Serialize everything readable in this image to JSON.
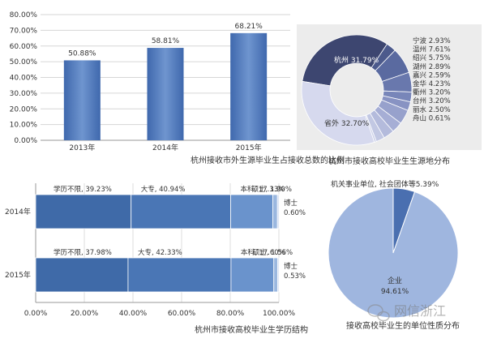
{
  "chart_data": [
    {
      "type": "bar",
      "title": "杭州接收市外生源毕业生占接收总数的比例",
      "categories": [
        "2013年",
        "2014年",
        "2015年"
      ],
      "values": [
        50.88,
        58.81,
        68.21
      ],
      "value_labels": [
        "50.88%",
        "58.81%",
        "68.21%"
      ],
      "yticks": [
        "0.00%",
        "10.00%",
        "20.00%",
        "30.00%",
        "40.00%",
        "50.00%",
        "60.00%",
        "70.00%",
        "80.00%"
      ],
      "ylim": [
        0,
        80
      ],
      "grid": true,
      "colors": {
        "bar": "#3f68ad",
        "bar_light": "#6f95cf"
      }
    },
    {
      "type": "pie",
      "title": "杭州市接收高校毕业生生源地分布",
      "slices": [
        {
          "name": "杭州",
          "value": 31.79,
          "label": "杭州 31.79%",
          "color": "#3d4670"
        },
        {
          "name": "宁波",
          "value": 2.93,
          "label": "2.93%",
          "color": "#4c5a8c"
        },
        {
          "name": "温州",
          "value": 7.61,
          "label": "7.61%",
          "color": "#5a6aa0"
        },
        {
          "name": "绍兴",
          "value": 5.75,
          "label": "5.75%",
          "color": "#6978ad"
        },
        {
          "name": "湖州",
          "value": 2.89,
          "label": "2.89%",
          "color": "#7886b9"
        },
        {
          "name": "嘉兴",
          "value": 2.59,
          "label": "2.59%",
          "color": "#8893c3"
        },
        {
          "name": "金华",
          "value": 4.23,
          "label": "4.23%",
          "color": "#97a1cc"
        },
        {
          "name": "衢州",
          "value": 3.2,
          "label": "3.20%",
          "color": "#a6aed5"
        },
        {
          "name": "台州",
          "value": 3.2,
          "label": "3.20%",
          "color": "#b4bbdc"
        },
        {
          "name": "丽水",
          "value": 2.5,
          "label": "2.50%",
          "color": "#c2c8e3"
        },
        {
          "name": "舟山",
          "value": 0.61,
          "label": "0.61%",
          "color": "#ccd1e9"
        },
        {
          "name": "省外",
          "value": 32.7,
          "label": "省外 32.70%",
          "color": "#d6d9ee"
        }
      ],
      "legend": [
        "宁波",
        "温州",
        "绍兴",
        "湖州",
        "嘉兴",
        "金华",
        "衢州",
        "台州",
        "丽水",
        "舟山"
      ],
      "legend_placement": "right"
    },
    {
      "type": "bar",
      "orientation": "horizontal",
      "stacked": true,
      "title": "杭州市接收高校毕业生学历结构",
      "categories": [
        "2014年",
        "2015年"
      ],
      "series": [
        {
          "name": "学历不限",
          "values": [
            39.23,
            37.98
          ],
          "labels": [
            "学历不限, 39.23%",
            "学历不限, 37.98%"
          ],
          "color": "#3f6aa8"
        },
        {
          "name": "大专",
          "values": [
            40.94,
            42.33
          ],
          "labels": [
            "大专, 40.94%",
            "大专, 42.33%"
          ],
          "color": "#4a76b5"
        },
        {
          "name": "本科",
          "values": [
            17.33,
            17.6
          ],
          "labels": [
            "本科, 17.33%",
            "本科, 17.60%"
          ],
          "color": "#6a93cc"
        },
        {
          "name": "硕士",
          "values": [
            1.9,
            1.56
          ],
          "labels": [
            "硕士, 1.90%",
            "硕士, 1.56%"
          ],
          "color": "#9ab7df"
        },
        {
          "name": "博士",
          "values": [
            0.6,
            0.53
          ],
          "labels": [
            "博士",
            "博士"
          ],
          "color": "#c6d6ee"
        }
      ],
      "phd_values": [
        "0.60%",
        "0.53%"
      ],
      "xticks": [
        "0.00%",
        "20.00%",
        "40.00%",
        "60.00%",
        "80.00%",
        "100.00%"
      ],
      "xlim": [
        0,
        100
      ]
    },
    {
      "type": "pie",
      "title": "接收高校毕业生的单位性质分布",
      "slices": [
        {
          "name": "机关事业单位,社会团体等",
          "value": 5.39,
          "label": "机关事业单位, 社会团体等5.39%",
          "color": "#4a6fb0"
        },
        {
          "name": "企业",
          "value": 94.61,
          "label": "企业",
          "value_label": "94.61%",
          "color": "#9fb6df"
        }
      ]
    }
  ],
  "watermark": {
    "text": "网信浙江"
  }
}
